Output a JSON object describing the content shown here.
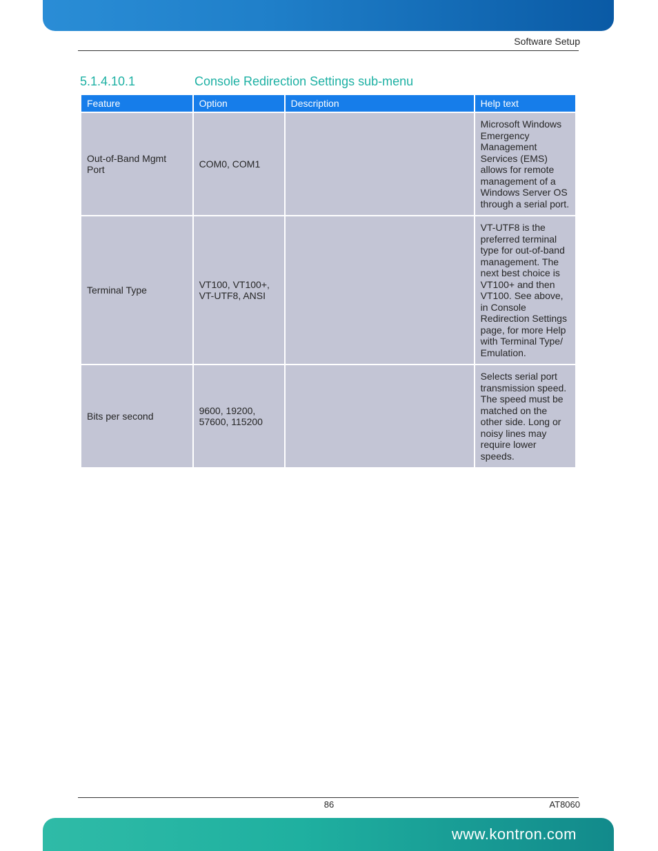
{
  "header": {
    "label": "Software Setup"
  },
  "section": {
    "number": "5.1.4.10.1",
    "title": "Console Redirection Settings sub-menu"
  },
  "table": {
    "columns": [
      "Feature",
      "Option",
      "Description",
      "Help text"
    ],
    "rows": [
      {
        "feature": "Out-of-Band Mgmt Port",
        "option": "COM0, COM1",
        "description": "",
        "help": "Microsoft Windows Emergency Management Services (EMS) allows for remote management of a Windows Server OS through a serial port."
      },
      {
        "feature": "Terminal Type",
        "option": "VT100, VT100+, VT-UTF8, ANSI",
        "description": "",
        "help": "VT-UTF8 is the preferred terminal type for out-of-band management. The next best choice is VT100+ and then VT100. See above, in Console Redirection Settings page, for more Help with Terminal Type/ Emulation."
      },
      {
        "feature": "Bits per second",
        "option": "9600, 19200, 57600, 115200",
        "description": "",
        "help": "Selects serial port transmission speed. The speed must be matched on the other side. Long or noisy lines may require lower speeds."
      }
    ]
  },
  "footer": {
    "page": "86",
    "doc": "AT8060",
    "url": "www.kontron.com"
  },
  "colors": {
    "accent_teal": "#1cb0a3",
    "th_blue": "#167dea",
    "cell_bg": "#c3c5d5",
    "top_grad_start": "#2a8dd6",
    "top_grad_end": "#0a5aa5",
    "bot_grad_start": "#2fbba7",
    "bot_grad_end": "#128a8b"
  }
}
